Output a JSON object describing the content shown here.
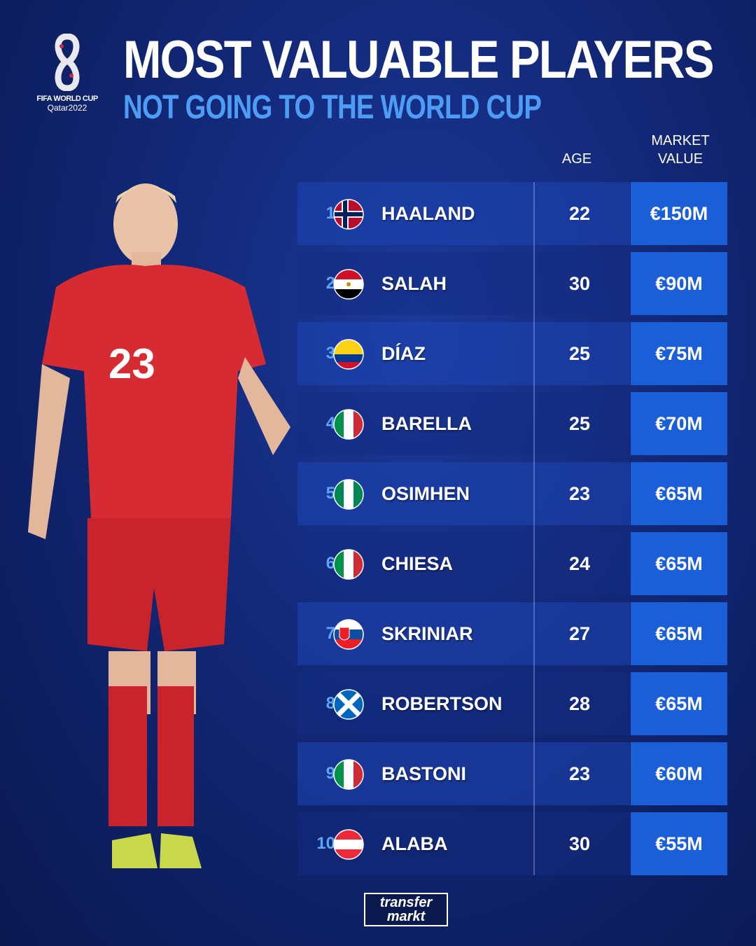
{
  "header": {
    "title": "MOST VALUABLE PLAYERS",
    "subtitle": "NOT GOING TO THE WORLD CUP"
  },
  "logo": {
    "line1": "FIFA WORLD CUP",
    "line2": "Qatar2022"
  },
  "columns": {
    "age": "AGE",
    "value_line1": "MARKET",
    "value_line2": "VALUE"
  },
  "rows": [
    {
      "rank": "1",
      "flag": "norway-flag",
      "name": "HAALAND",
      "age": "22",
      "value": "€150M"
    },
    {
      "rank": "2",
      "flag": "egypt-flag",
      "name": "SALAH",
      "age": "30",
      "value": "€90M"
    },
    {
      "rank": "3",
      "flag": "colombia-flag",
      "name": "DÍAZ",
      "age": "25",
      "value": "€75M"
    },
    {
      "rank": "4",
      "flag": "italy-flag",
      "name": "BARELLA",
      "age": "25",
      "value": "€70M"
    },
    {
      "rank": "5",
      "flag": "nigeria-flag",
      "name": "OSIMHEN",
      "age": "23",
      "value": "€65M"
    },
    {
      "rank": "6",
      "flag": "italy-flag",
      "name": "CHIESA",
      "age": "24",
      "value": "€65M"
    },
    {
      "rank": "7",
      "flag": "slovakia-flag",
      "name": "SKRINIAR",
      "age": "27",
      "value": "€65M"
    },
    {
      "rank": "8",
      "flag": "scotland-flag",
      "name": "ROBERTSON",
      "age": "28",
      "value": "€65M"
    },
    {
      "rank": "9",
      "flag": "italy-flag",
      "name": "BASTONI",
      "age": "23",
      "value": "€60M"
    },
    {
      "rank": "10",
      "flag": "austria-flag",
      "name": "ALABA",
      "age": "30",
      "value": "€55M"
    }
  ],
  "footer": {
    "brand_line1": "transfer",
    "brand_line2": "markt"
  },
  "player_shirt_number": "23",
  "colors": {
    "accent": "#1a5fd8",
    "subtitle": "#4d9cf5",
    "background": "#13297a"
  }
}
